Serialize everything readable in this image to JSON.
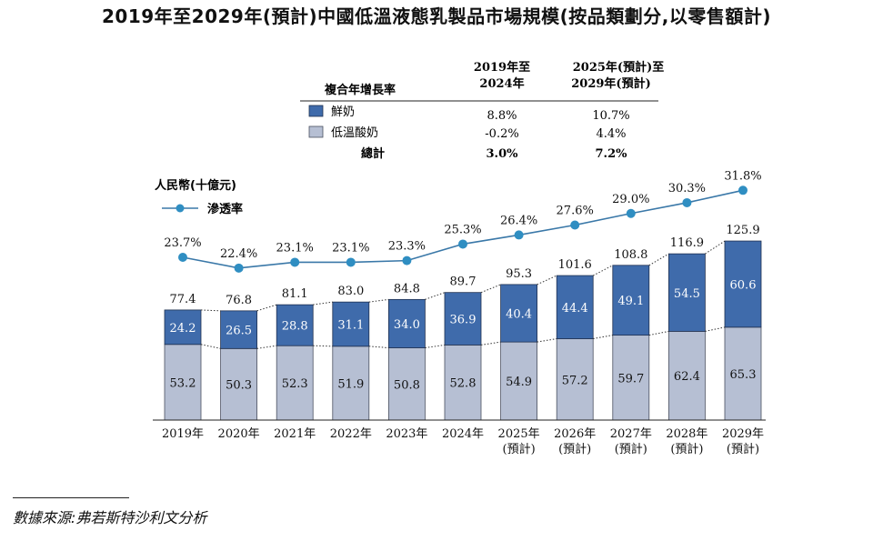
{
  "title": "2019年至2029年(預計)中國低溫液態乳製品市場規模(按品類劃分,以零售額計)",
  "source": "數據來源:弗若斯特沙利文分析",
  "cagr_table": {
    "header_label": "複合年增長率",
    "col1_line1": "2019年至",
    "col1_line2": "2024年",
    "col2_line1": "2025年(預計)至",
    "col2_line2": "2029年(預計)",
    "rows": [
      {
        "label": "鮮奶",
        "v1": "8.8%",
        "v2": "10.7%",
        "color": "#3f6bab"
      },
      {
        "label": "低溫酸奶",
        "v1": "-0.2%",
        "v2": "4.4%",
        "color": "#b6bfd3"
      }
    ],
    "total": {
      "label": "總計",
      "v1": "3.0%",
      "v2": "7.2%"
    }
  },
  "unit_label": "人民幣(十億元)",
  "penetration_legend": "滲透率",
  "colors": {
    "fresh": "#3f6bab",
    "yogurt": "#b6bfd3",
    "line": "#3a78a8",
    "dot": "#2f8ec2"
  },
  "chart_data": {
    "type": "bar",
    "stacked": true,
    "categories": [
      "2019年",
      "2020年",
      "2021年",
      "2022年",
      "2023年",
      "2024年",
      "2025年\n(預計)",
      "2026年\n(預計)",
      "2027年\n(預計)",
      "2028年\n(預計)",
      "2029年\n(預計)"
    ],
    "series": [
      {
        "name": "低溫酸奶",
        "values": [
          53.2,
          50.3,
          52.3,
          51.9,
          50.8,
          52.8,
          54.9,
          57.2,
          59.7,
          62.4,
          65.3
        ]
      },
      {
        "name": "鮮奶",
        "values": [
          24.2,
          26.5,
          28.8,
          31.1,
          34.0,
          36.9,
          40.4,
          44.4,
          49.1,
          54.5,
          60.6
        ]
      }
    ],
    "totals": [
      77.4,
      76.8,
      81.1,
      83.0,
      84.8,
      89.7,
      95.3,
      101.6,
      108.8,
      116.9,
      125.9
    ],
    "penetration": {
      "name": "滲透率",
      "values": [
        23.7,
        22.4,
        23.1,
        23.1,
        23.3,
        25.3,
        26.4,
        27.6,
        29.0,
        30.3,
        31.8
      ],
      "labels": [
        "23.7%",
        "22.4%",
        "23.1%",
        "23.1%",
        "23.3%",
        "25.3%",
        "26.4%",
        "27.6%",
        "29.0%",
        "30.3%",
        "31.8%"
      ]
    },
    "ylabel": "人民幣(十億元)"
  }
}
